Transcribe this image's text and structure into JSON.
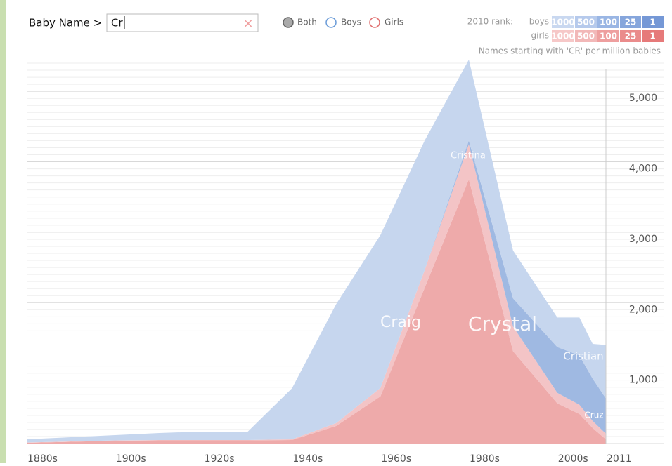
{
  "search": {
    "label": "Baby Name >",
    "value": "Cr",
    "clear": "×"
  },
  "filter": {
    "options": [
      "Both",
      "Boys",
      "Girls"
    ]
  },
  "rank": {
    "label": "2010 rank:",
    "boys": {
      "label": "boys",
      "levels": [
        1000,
        500,
        100,
        25,
        1
      ],
      "colors": [
        "#c9d8f0",
        "#b6caec",
        "#9ab6e4",
        "#86a6dc",
        "#7598d6"
      ]
    },
    "girls": {
      "label": "girls",
      "levels": [
        1000,
        500,
        100,
        25,
        1
      ],
      "colors": [
        "#f6c8c8",
        "#f2b8b8",
        "#ee9f9f",
        "#ea8c8c",
        "#e67a7a"
      ]
    }
  },
  "chart_data": {
    "type": "area",
    "stacked": true,
    "subtitle": "Names starting with 'CR' per million babies",
    "x": [
      1880,
      1890,
      1900,
      1910,
      1920,
      1930,
      1940,
      1950,
      1960,
      1970,
      1980,
      1990,
      2000,
      2005,
      2008,
      2011
    ],
    "series": [
      {
        "name": "Crystal",
        "color": "#eeaaaa",
        "values": [
          10,
          25,
          40,
          45,
          45,
          45,
          50,
          250,
          670,
          2210,
          3750,
          1310,
          570,
          420,
          220,
          60
        ]
      },
      {
        "name": "Cristina",
        "color": "#f3c4c6",
        "values": [
          5,
          5,
          5,
          5,
          5,
          5,
          10,
          40,
          120,
          250,
          500,
          350,
          150,
          130,
          100,
          80
        ]
      },
      {
        "name": "Cristian",
        "color": "#9fb9e2",
        "values": [
          0,
          0,
          0,
          0,
          0,
          0,
          0,
          0,
          0,
          0,
          50,
          400,
          650,
          700,
          600,
          500
        ]
      },
      {
        "name": "Craig",
        "color": "#c6d6ee",
        "values": [
          45,
          60,
          75,
          100,
          120,
          120,
          725,
          1690,
          2170,
          1840,
          1150,
          680,
          420,
          540,
          495,
          760
        ]
      }
    ],
    "annotations": [
      "Cruz"
    ],
    "xlim": [
      1880,
      2011
    ],
    "xticks": [
      {
        "value": 1880,
        "label": "1880s"
      },
      {
        "value": 1900,
        "label": "1900s"
      },
      {
        "value": 1920,
        "label": "1920s"
      },
      {
        "value": 1940,
        "label": "1940s"
      },
      {
        "value": 1960,
        "label": "1960s"
      },
      {
        "value": 1980,
        "label": "1980s"
      },
      {
        "value": 2000,
        "label": "2000s"
      },
      2011
    ],
    "ylim": [
      0,
      5470
    ],
    "yticks": [
      {
        "value": 1000,
        "label": "1,000"
      },
      {
        "value": 2000,
        "label": "2,000"
      },
      {
        "value": 3000,
        "label": "3,000"
      },
      {
        "value": 4000,
        "label": "4,000"
      },
      {
        "value": 5000,
        "label": "5,000"
      }
    ],
    "grid": true
  }
}
